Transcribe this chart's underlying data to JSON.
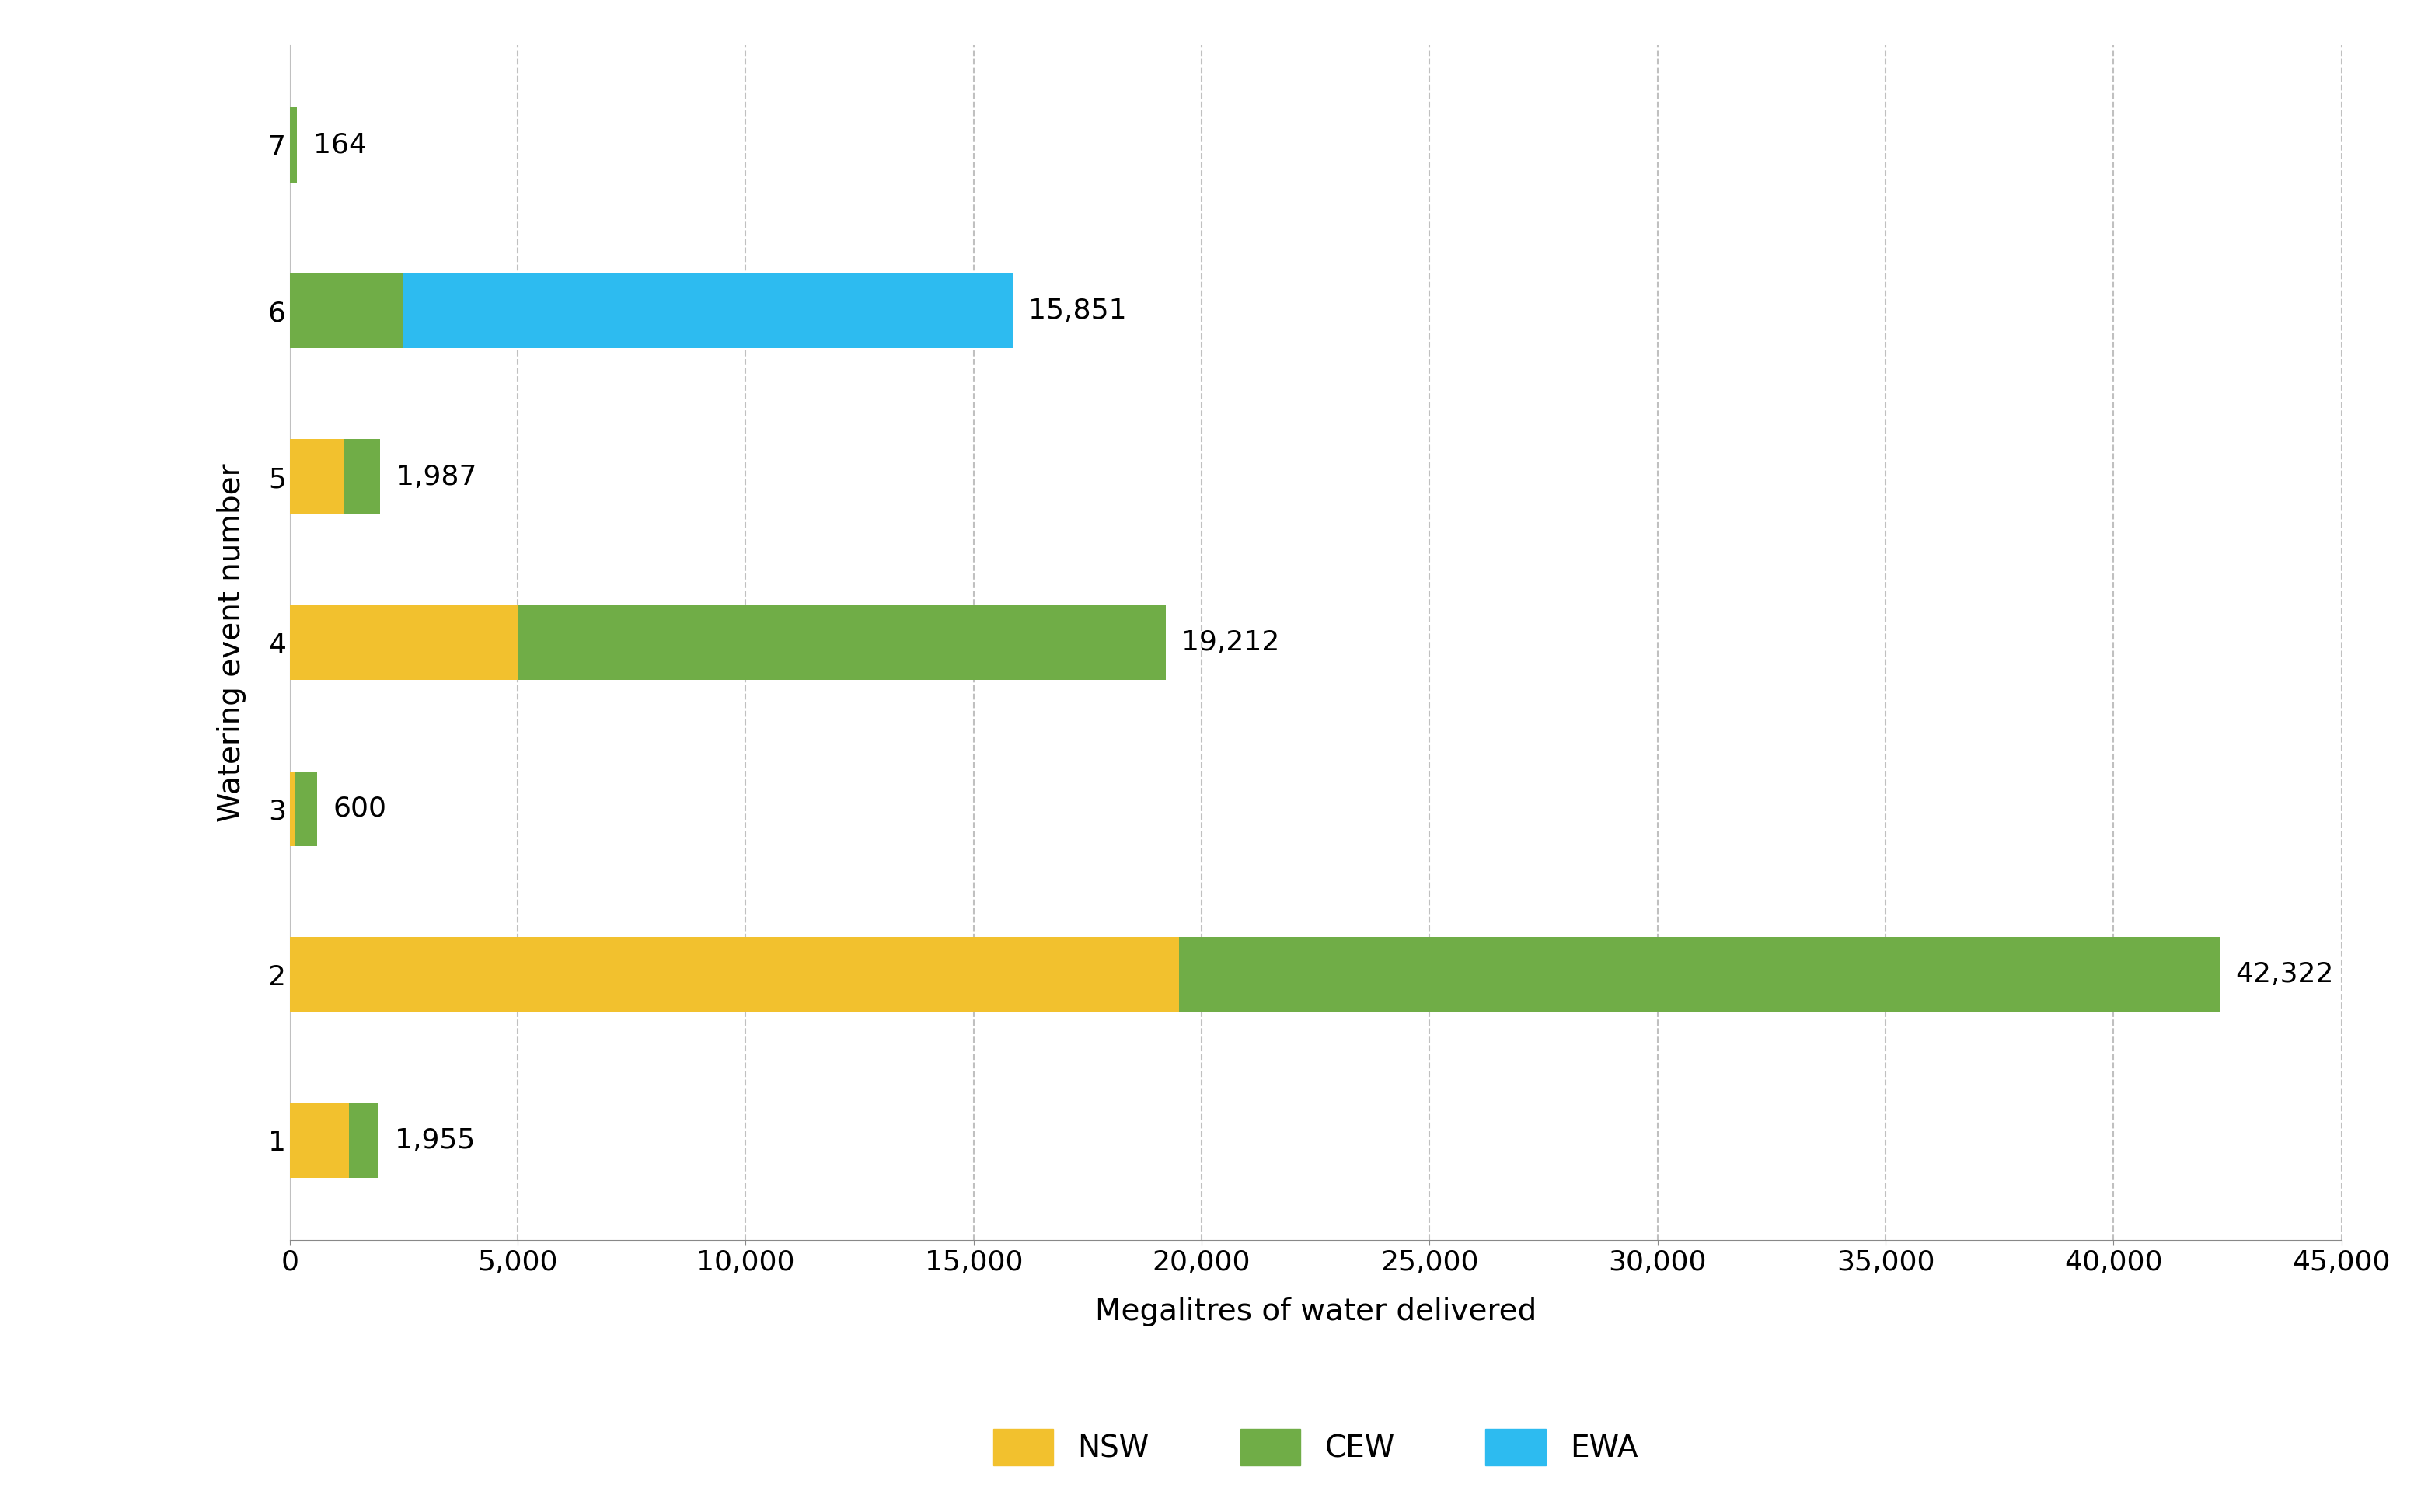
{
  "events": [
    1,
    2,
    3,
    4,
    5,
    6,
    7
  ],
  "nsw": [
    1300,
    19500,
    100,
    5000,
    1200,
    0,
    0
  ],
  "cew": [
    655,
    22822,
    500,
    14212,
    787,
    2500,
    164
  ],
  "ewa": [
    0,
    0,
    0,
    0,
    0,
    13351,
    0
  ],
  "totals": [
    1955,
    42322,
    600,
    19212,
    1987,
    15851,
    164
  ],
  "total_labels": [
    "1,955",
    "42,322",
    "600",
    "19,212",
    "1,987",
    "15,851",
    "164"
  ],
  "nsw_color": "#F2C12E",
  "cew_color": "#70AD47",
  "ewa_color": "#2DBBF0",
  "xlabel": "Megalitres of water delivered",
  "ylabel": "Watering event number",
  "xlim": [
    0,
    45000
  ],
  "xticks": [
    0,
    5000,
    10000,
    15000,
    20000,
    25000,
    30000,
    35000,
    40000,
    45000
  ],
  "xtick_labels": [
    "0",
    "5,000",
    "10,000",
    "15,000",
    "20,000",
    "25,000",
    "30,000",
    "35,000",
    "40,000",
    "45,000"
  ],
  "legend_labels": [
    "NSW",
    "CEW",
    "EWA"
  ],
  "bar_height": 0.45,
  "background_color": "#ffffff",
  "grid_color": "#c0c0c0",
  "label_fontsize": 28,
  "tick_fontsize": 26,
  "legend_fontsize": 28,
  "annotation_fontsize": 26
}
